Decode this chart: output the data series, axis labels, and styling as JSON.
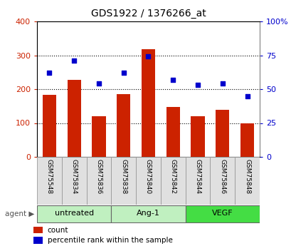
{
  "title": "GDS1922 / 1376266_at",
  "categories": [
    "GSM75548",
    "GSM75834",
    "GSM75836",
    "GSM75838",
    "GSM75840",
    "GSM75842",
    "GSM75844",
    "GSM75846",
    "GSM75848"
  ],
  "bar_values": [
    183,
    228,
    120,
    185,
    318,
    148,
    120,
    140,
    98
  ],
  "scatter_values": [
    62,
    71,
    54,
    62,
    74,
    57,
    53,
    54,
    45
  ],
  "group_configs": [
    {
      "label": "untreated",
      "start": 0,
      "end": 3,
      "color": "#c0f0c0"
    },
    {
      "label": "Ang-1",
      "start": 3,
      "end": 6,
      "color": "#c0f0c0"
    },
    {
      "label": "VEGF",
      "start": 6,
      "end": 9,
      "color": "#44dd44"
    }
  ],
  "bar_color": "#cc2200",
  "scatter_color": "#0000cc",
  "left_ylim": [
    0,
    400
  ],
  "right_ylim": [
    0,
    100
  ],
  "left_yticks": [
    0,
    100,
    200,
    300,
    400
  ],
  "right_yticks": [
    0,
    25,
    50,
    75,
    100
  ],
  "right_yticklabels": [
    "0",
    "25",
    "50",
    "75",
    "100%"
  ],
  "grid_values": [
    100,
    200,
    300
  ],
  "legend_count_label": "count",
  "legend_percentile_label": "percentile rank within the sample",
  "agent_label": "agent"
}
